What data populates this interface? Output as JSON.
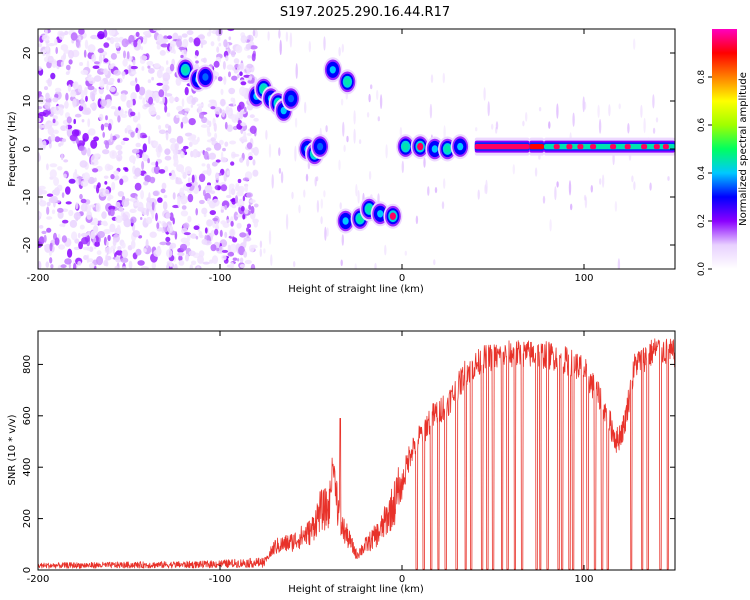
{
  "title": "S197.2025.290.16.44.R17",
  "colors": {
    "snr_line": "#e8322a",
    "axes": "#000000",
    "colorbar_stops": [
      "#ffffff",
      "#e8d0ff",
      "#8a00ff",
      "#0000ff",
      "#00c8ff",
      "#00ff60",
      "#a0ff00",
      "#ffff00",
      "#ff8000",
      "#ff0000",
      "#ff00c0"
    ]
  },
  "chart_data": [
    {
      "type": "heatmap",
      "name": "spectrogram",
      "xlabel": "Height of straight line (km)",
      "ylabel": "Frequency (Hz)",
      "xlim": [
        -200,
        150
      ],
      "ylim": [
        -25,
        25
      ],
      "xticks": [
        {
          "value": -200,
          "label": "-200"
        },
        {
          "value": -100,
          "label": "-100"
        },
        {
          "value": 0,
          "label": "0"
        },
        {
          "value": 100,
          "label": "100"
        }
      ],
      "yticks": [
        {
          "value": 20,
          "label": "20"
        },
        {
          "value": 10,
          "label": "10"
        },
        {
          "value": 0,
          "label": "0"
        },
        {
          "value": -10,
          "label": "-10"
        },
        {
          "value": -20,
          "label": "-20"
        }
      ],
      "noise_region_x": [
        -200,
        -80
      ],
      "features": [
        {
          "x": -119,
          "y": 16.5,
          "amp": 0.45
        },
        {
          "x": -112,
          "y": 14.5,
          "amp": 0.4
        },
        {
          "x": -108,
          "y": 15,
          "amp": 0.35
        },
        {
          "x": -80,
          "y": 11,
          "amp": 0.4
        },
        {
          "x": -76,
          "y": 12.5,
          "amp": 0.45
        },
        {
          "x": -72,
          "y": 10.5,
          "amp": 0.4
        },
        {
          "x": -68,
          "y": 9.5,
          "amp": 0.45
        },
        {
          "x": -65,
          "y": 8,
          "amp": 0.4
        },
        {
          "x": -61,
          "y": 10.5,
          "amp": 0.35
        },
        {
          "x": -52,
          "y": 0,
          "amp": 0.4
        },
        {
          "x": -48,
          "y": -1,
          "amp": 0.45
        },
        {
          "x": -45,
          "y": 0.5,
          "amp": 0.35
        },
        {
          "x": -38,
          "y": 16.5,
          "amp": 0.4
        },
        {
          "x": -30,
          "y": 14,
          "amp": 0.45
        },
        {
          "x": -31,
          "y": -15,
          "amp": 0.4
        },
        {
          "x": -23,
          "y": -14.5,
          "amp": 0.45
        },
        {
          "x": -18,
          "y": -12.5,
          "amp": 0.45
        },
        {
          "x": -12,
          "y": -13.5,
          "amp": 0.4
        },
        {
          "x": -5,
          "y": -14,
          "amp": 0.95
        },
        {
          "x": 2,
          "y": 0.5,
          "amp": 0.45
        },
        {
          "x": 10,
          "y": 0.5,
          "amp": 0.95
        },
        {
          "x": 18,
          "y": 0,
          "amp": 0.4
        },
        {
          "x": 25,
          "y": 0,
          "amp": 0.45
        },
        {
          "x": 32,
          "y": 0.5,
          "amp": 0.4
        }
      ],
      "bands": [
        {
          "x0": 40,
          "x1": 70,
          "y": 0.5,
          "amp": 0.95
        },
        {
          "x0": 70,
          "x1": 78,
          "y": 0.5,
          "amp": 0.9
        },
        {
          "x0": 78,
          "x1": 150,
          "y": 0.5,
          "amp": 0.45
        }
      ],
      "band_hotspots": [
        85,
        92,
        98,
        105,
        116,
        124,
        133,
        140,
        145
      ]
    },
    {
      "type": "colorbar",
      "label": "Normalized spectral amplitude",
      "range": [
        0,
        1
      ],
      "ticks": [
        {
          "value": 0.0,
          "label": "0.0"
        },
        {
          "value": 0.2,
          "label": "0.2"
        },
        {
          "value": 0.4,
          "label": "0.4"
        },
        {
          "value": 0.6,
          "label": "0.6"
        },
        {
          "value": 0.8,
          "label": "0.8"
        }
      ]
    },
    {
      "type": "line",
      "name": "snr",
      "xlabel": "Height of straight line (km)",
      "ylabel": "SNR (10 * v/v)",
      "xlim": [
        -200,
        150
      ],
      "ylim": [
        0,
        930
      ],
      "xticks": [
        {
          "value": -200,
          "label": "-200"
        },
        {
          "value": -100,
          "label": "-100"
        },
        {
          "value": 0,
          "label": "0"
        },
        {
          "value": 100,
          "label": "100"
        }
      ],
      "yticks": [
        {
          "value": 0,
          "label": "0"
        },
        {
          "value": 200,
          "label": "200"
        },
        {
          "value": 400,
          "label": "400"
        },
        {
          "value": 600,
          "label": "600"
        },
        {
          "value": 800,
          "label": "800"
        }
      ],
      "trend": [
        [
          -200,
          20
        ],
        [
          -110,
          25
        ],
        [
          -75,
          35
        ],
        [
          -70,
          90
        ],
        [
          -60,
          110
        ],
        [
          -50,
          150
        ],
        [
          -45,
          230
        ],
        [
          -40,
          240
        ],
        [
          -38,
          420
        ],
        [
          -34,
          180
        ],
        [
          -30,
          130
        ],
        [
          -25,
          60
        ],
        [
          -12,
          150
        ],
        [
          -5,
          250
        ],
        [
          0,
          330
        ],
        [
          5,
          470
        ],
        [
          10,
          520
        ],
        [
          15,
          580
        ],
        [
          20,
          620
        ],
        [
          25,
          650
        ],
        [
          30,
          700
        ],
        [
          35,
          770
        ],
        [
          45,
          820
        ],
        [
          60,
          840
        ],
        [
          75,
          840
        ],
        [
          85,
          830
        ],
        [
          95,
          800
        ],
        [
          100,
          780
        ],
        [
          110,
          650
        ],
        [
          118,
          500
        ],
        [
          122,
          560
        ],
        [
          128,
          800
        ],
        [
          140,
          860
        ],
        [
          150,
          840
        ]
      ],
      "dropouts": [
        8,
        12,
        16,
        20,
        24,
        30,
        35,
        38,
        44,
        47,
        50,
        55,
        58,
        62,
        66,
        74,
        76,
        80,
        86,
        88,
        92,
        94,
        99,
        102,
        106,
        110,
        113,
        126,
        132,
        135,
        142,
        146
      ],
      "spikes": [
        {
          "x": -34,
          "y": 590
        }
      ]
    }
  ]
}
